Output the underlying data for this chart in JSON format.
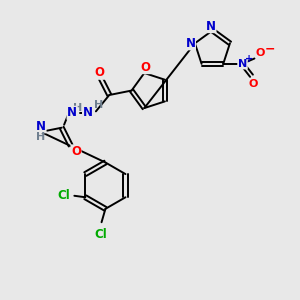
{
  "background_color": "#e8e8e8",
  "bond_color": "#000000",
  "atom_colors": {
    "N": "#0000cc",
    "O": "#ff0000",
    "Cl": "#00aa00",
    "H": "#708090",
    "C": "#000000"
  },
  "figsize": [
    3.0,
    3.0
  ],
  "dpi": 100
}
